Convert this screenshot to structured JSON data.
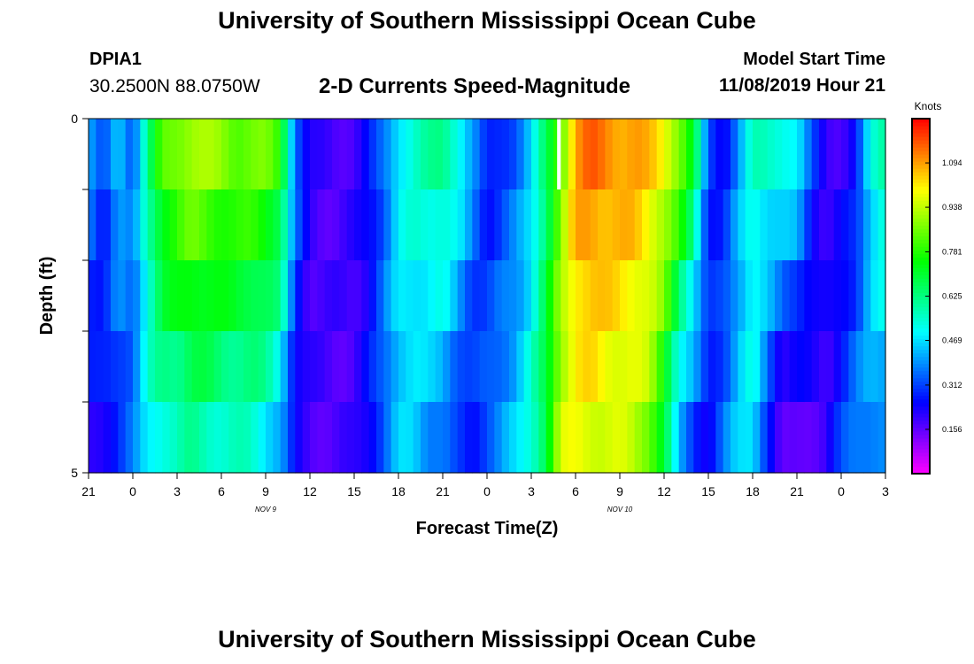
{
  "header": {
    "title": "University of Southern Mississippi Ocean Cube",
    "footer_title": "University of Southern Mississippi Ocean Cube",
    "station_id": "DPIA1",
    "station_coords": "30.2500N 88.0750W",
    "subtitle": "2-D Currents Speed-Magnitude",
    "model_start_label": "Model Start Time",
    "model_start_value": "11/08/2019 Hour 21"
  },
  "chart_data": {
    "type": "heatmap",
    "title": "2-D Currents Speed-Magnitude",
    "xlabel": "Forecast Time(Z)",
    "ylabel": "Depth (ft)",
    "colorbar_label": "Knots",
    "x_tick_labels": [
      "21",
      "0",
      "3",
      "6",
      "9",
      "12",
      "15",
      "18",
      "21",
      "0",
      "3",
      "6",
      "9",
      "12",
      "15",
      "18",
      "21",
      "0",
      "3"
    ],
    "x_date_labels": [
      {
        "label": "NOV  9",
        "at_hour": 12
      },
      {
        "label": "NOV  10",
        "at_hour": 36
      }
    ],
    "x_range_hours": [
      0,
      54
    ],
    "y_tick_labels": [
      "0",
      "5"
    ],
    "y_range": [
      0,
      5
    ],
    "y_minor_ticks": [
      1,
      2,
      3,
      4
    ],
    "colorbar_ticks": [
      "1.094",
      "0.938",
      "0.781",
      "0.625",
      "0.469",
      "0.312",
      "0.156"
    ],
    "color_range": [
      0,
      1.25
    ],
    "depth_rows": 5,
    "time_step_hours": 0.5,
    "profile_hours": [
      0,
      1,
      2,
      3,
      4,
      5,
      6,
      7,
      8,
      9,
      10,
      11,
      12,
      13,
      14,
      15,
      16,
      17,
      18,
      19,
      20,
      21,
      22,
      23,
      24,
      25,
      26,
      27,
      28,
      29,
      30,
      31,
      32,
      33,
      34,
      35,
      36,
      37,
      38,
      39,
      40,
      41,
      42,
      43,
      44,
      45,
      46,
      47,
      48,
      49,
      50,
      51,
      52,
      53,
      54
    ],
    "surface_speed": [
      0.42,
      0.28,
      0.47,
      0.35,
      0.6,
      0.82,
      0.88,
      0.92,
      0.9,
      0.88,
      0.85,
      0.86,
      0.85,
      0.78,
      0.38,
      0.2,
      0.18,
      0.18,
      0.2,
      0.25,
      0.35,
      0.5,
      0.55,
      0.58,
      0.62,
      0.55,
      0.4,
      0.25,
      0.3,
      0.35,
      0.45,
      0.65,
      0.85,
      1.1,
      1.15,
      1.12,
      1.1,
      1.1,
      1.05,
      1.0,
      0.9,
      0.7,
      0.3,
      0.25,
      0.4,
      0.55,
      0.55,
      0.55,
      0.5,
      0.3,
      0.2,
      0.2,
      0.25,
      0.5,
      0.62
    ],
    "bottom_speed": [
      0.2,
      0.25,
      0.28,
      0.35,
      0.5,
      0.55,
      0.55,
      0.6,
      0.58,
      0.55,
      0.55,
      0.55,
      0.5,
      0.42,
      0.22,
      0.18,
      0.18,
      0.18,
      0.18,
      0.25,
      0.35,
      0.45,
      0.45,
      0.4,
      0.38,
      0.28,
      0.25,
      0.35,
      0.4,
      0.45,
      0.55,
      0.7,
      0.95,
      0.98,
      0.98,
      0.96,
      0.95,
      0.92,
      0.88,
      0.7,
      0.4,
      0.3,
      0.25,
      0.35,
      0.45,
      0.5,
      0.3,
      0.12,
      0.15,
      0.18,
      0.2,
      0.3,
      0.38,
      0.4,
      0.38
    ],
    "missing_cell": {
      "hour": 32,
      "depth_row": 0
    }
  }
}
